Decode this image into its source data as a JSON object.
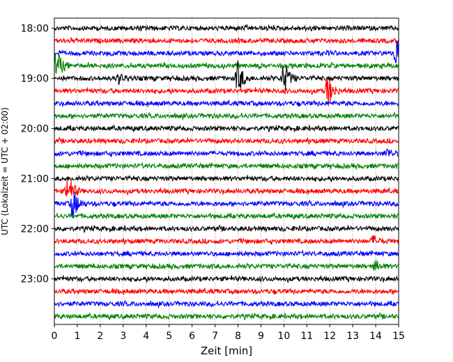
{
  "chart_data": {
    "type": "line",
    "title": "",
    "xlabel": "Zeit  [min]",
    "ylabel": "UTC (Lokalzeit = UTC + 02:00)",
    "xlim": [
      0,
      15
    ],
    "xticks": [
      "0",
      "1",
      "2",
      "3",
      "4",
      "5",
      "6",
      "7",
      "8",
      "9",
      "10",
      "11",
      "12",
      "13",
      "14",
      "15"
    ],
    "yticks": [
      "18:00",
      "19:00",
      "20:00",
      "21:00",
      "22:00",
      "23:00"
    ],
    "grid": "vertical dotted",
    "trace_colors": [
      "#000000",
      "#ff0000",
      "#0000ff",
      "#008000"
    ],
    "rows_start": "18:00",
    "row_interval_min": 15,
    "rows_count": 24,
    "events": [
      {
        "row": "18:45",
        "minute": 0.1,
        "amplitude": "large"
      },
      {
        "row": "19:00",
        "minute": 8.0,
        "amplitude": "large"
      },
      {
        "row": "19:00",
        "minute": 10.0,
        "amplitude": "large"
      },
      {
        "row": "19:15",
        "minute": 11.9,
        "amplitude": "large"
      },
      {
        "row": "18:30",
        "minute": 14.9,
        "amplitude": "large"
      },
      {
        "row": "21:15",
        "minute": 0.6,
        "amplitude": "large"
      },
      {
        "row": "21:30",
        "minute": 0.8,
        "amplitude": "large"
      },
      {
        "row": "20:30",
        "minute": 14.5,
        "amplitude": "small"
      },
      {
        "row": "22:15",
        "minute": 13.9,
        "amplitude": "small"
      },
      {
        "row": "22:45",
        "minute": 14.0,
        "amplitude": "small"
      },
      {
        "row": "19:00",
        "minute": 2.8,
        "amplitude": "small"
      }
    ]
  }
}
